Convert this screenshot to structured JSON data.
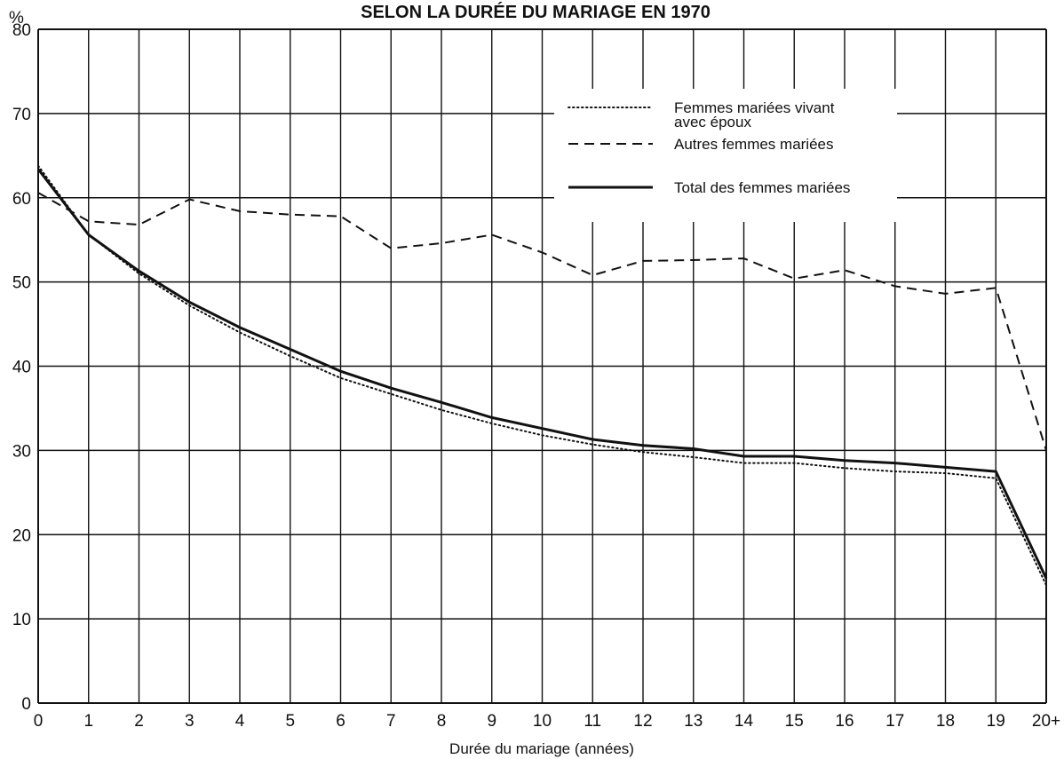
{
  "chart_data": {
    "type": "line",
    "title": "SELON LA DURÉE DU MARIAGE EN 1970",
    "ylabel": "%",
    "xlabel": "Durée du mariage (années)",
    "ylim": [
      0,
      80
    ],
    "x_ticks": [
      "0",
      "1",
      "2",
      "3",
      "4",
      "5",
      "6",
      "7",
      "8",
      "9",
      "10",
      "11",
      "12",
      "13",
      "14",
      "15",
      "16",
      "17",
      "18",
      "19",
      "20+"
    ],
    "y_ticks": [
      "0",
      "10",
      "20",
      "30",
      "40",
      "50",
      "60",
      "70",
      "80"
    ],
    "grid": true,
    "legend_position": "top-right",
    "x": [
      "0",
      "1",
      "2",
      "3",
      "4",
      "5",
      "6",
      "7",
      "8",
      "9",
      "10",
      "11",
      "12",
      "13",
      "14",
      "15",
      "16",
      "17",
      "18",
      "19",
      "20+"
    ],
    "series": [
      {
        "name": "Femmes mariées vivant avec époux",
        "legend_lines": [
          "Femmes mariées vivant",
          "avec époux"
        ],
        "style": "dotted",
        "values": [
          63.8,
          55.6,
          51.0,
          47.2,
          44.0,
          41.2,
          38.6,
          36.7,
          34.8,
          33.2,
          31.8,
          30.7,
          29.8,
          29.2,
          28.5,
          28.5,
          27.9,
          27.5,
          27.3,
          26.7,
          14.0
        ]
      },
      {
        "name": "Autres femmes mariées",
        "legend_lines": [
          "Autres femmes mariées"
        ],
        "style": "dashed",
        "values": [
          60.6,
          57.2,
          56.8,
          59.8,
          58.4,
          58.0,
          57.8,
          54.0,
          54.6,
          55.6,
          53.5,
          50.8,
          52.5,
          52.6,
          52.8,
          50.4,
          51.4,
          49.5,
          48.6,
          49.3,
          30.0
        ]
      },
      {
        "name": "Total des femmes mariées",
        "legend_lines": [
          "Total des femmes mariées"
        ],
        "style": "solid",
        "values": [
          63.4,
          55.6,
          51.3,
          47.6,
          44.6,
          42.0,
          39.4,
          37.4,
          35.7,
          33.9,
          32.6,
          31.3,
          30.6,
          30.2,
          29.3,
          29.3,
          28.8,
          28.5,
          28.0,
          27.5,
          14.8
        ]
      }
    ]
  }
}
